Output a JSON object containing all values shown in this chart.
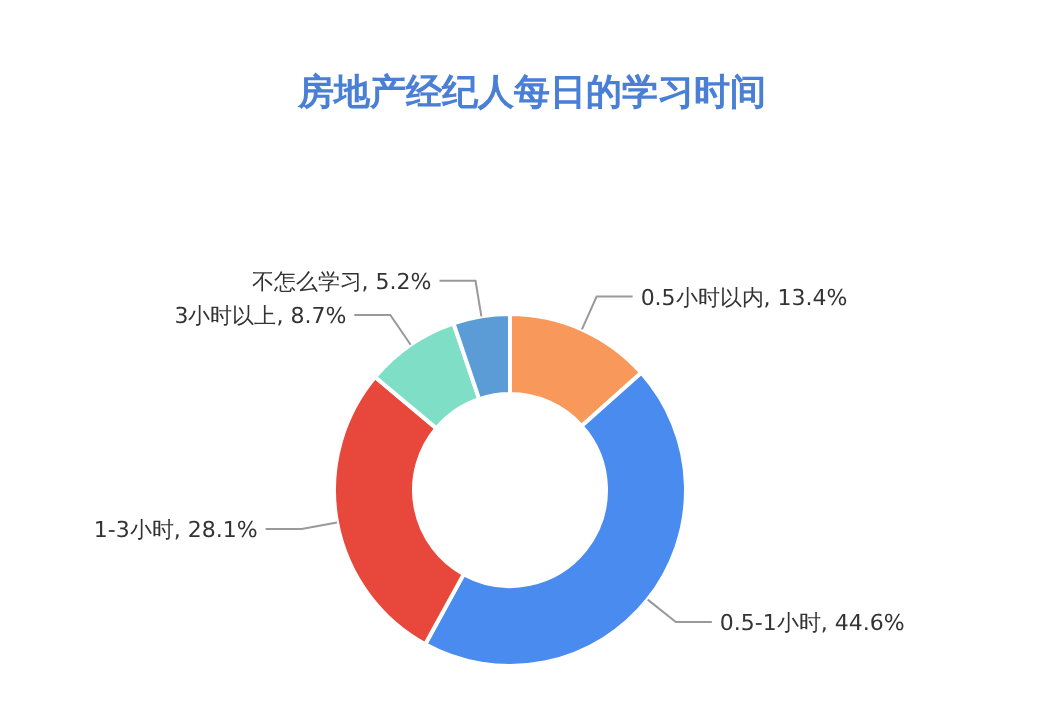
{
  "chart_data": {
    "type": "donut",
    "title": "房地产经纪人每日的学习时间",
    "categories": [
      "0.5小时以内",
      "0.5-1小时",
      "1-3小时",
      "3小时以上",
      "不怎么学习"
    ],
    "values": [
      13.4,
      44.6,
      28.1,
      8.7,
      5.2
    ],
    "value_labels": [
      "13.4%",
      "44.6%",
      "28.1%",
      "8.7%",
      "5.2%"
    ],
    "colors": [
      "#f8995b",
      "#4a8bef",
      "#e8483b",
      "#7fdfc6",
      "#5b9bd6"
    ]
  }
}
